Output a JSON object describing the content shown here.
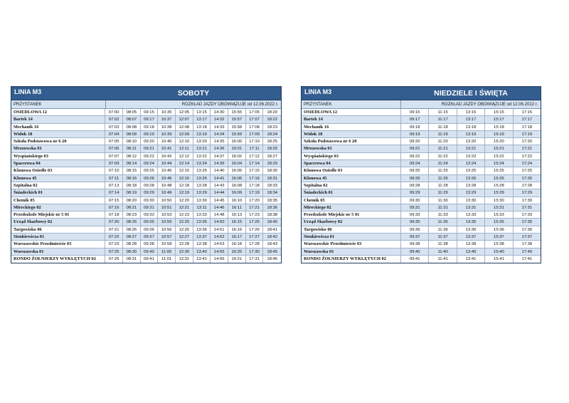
{
  "stops": [
    "OSIEDLOWA 12",
    "Bartek 14",
    "Mechanik 16",
    "Widok 18",
    "Szkoła Podstawowa nr 6 20",
    "Mrozowska 01",
    "Wyspiańskiego 03",
    "Spacerowa 04",
    "Klonowa Osiedle 03",
    "Klonowa 45",
    "Szpitalna 02",
    "Śniadeckich 01",
    "Chemik 05",
    "Mireckiego 02",
    "Przedszkole Miejskie nr 5 01",
    "Urząd Skarbowy 02",
    "Targowisko 06",
    "Sienkiewicza 01",
    "Warszawskie Przedmieście 03",
    "Warszawska 01",
    "RONDO ŻOŁNIERZY WYKLĘTYCH 02"
  ],
  "saturday": {
    "line": "LINIA  M3",
    "day": "SOBOTY",
    "stop_header": "PRZYSTANEK",
    "valid_from": "ROZKŁAD JAZDY OBOWIĄZUJE od 12.06.2022 r.",
    "times": [
      [
        "07:00",
        "08:05",
        "09:15",
        "10:35",
        "12:05",
        "13:15",
        "14:30",
        "15:55",
        "17:05",
        "18:20"
      ],
      [
        "07:02",
        "08:07",
        "09:17",
        "10:37",
        "12:07",
        "13:17",
        "14:32",
        "15:57",
        "17:07",
        "18:22"
      ],
      [
        "07:03",
        "08:08",
        "09:18",
        "10:38",
        "12:08",
        "13:18",
        "14:33",
        "15:58",
        "17:08",
        "18:23"
      ],
      [
        "07:04",
        "08:09",
        "09:19",
        "10:39",
        "12:09",
        "13:19",
        "14:34",
        "15:59",
        "17:09",
        "18:24"
      ],
      [
        "07:05",
        "08:10",
        "09:20",
        "10:40",
        "12:10",
        "13:20",
        "14:35",
        "16:00",
        "17:10",
        "18:25"
      ],
      [
        "07:06",
        "08:11",
        "09:21",
        "10:41",
        "12:11",
        "13:21",
        "14:36",
        "16:01",
        "17:11",
        "18:26"
      ],
      [
        "07:07",
        "08:12",
        "09:22",
        "10:42",
        "12:12",
        "13:22",
        "14:37",
        "16:02",
        "17:12",
        "18:27"
      ],
      [
        "07:09",
        "08:14",
        "09:24",
        "10:44",
        "12:14",
        "13:24",
        "14:39",
        "16:04",
        "17:14",
        "18:29"
      ],
      [
        "07:10",
        "08:15",
        "09:25",
        "10:45",
        "12:15",
        "13:25",
        "14:40",
        "16:05",
        "17:15",
        "18:30"
      ],
      [
        "07:11",
        "08:16",
        "09:26",
        "10:46",
        "12:16",
        "13:26",
        "14:41",
        "16:06",
        "17:16",
        "18:31"
      ],
      [
        "07:13",
        "08:18",
        "09:28",
        "10:48",
        "12:18",
        "13:28",
        "14:43",
        "16:08",
        "17:18",
        "18:33"
      ],
      [
        "07:14",
        "08:19",
        "09:29",
        "10:49",
        "12:19",
        "13:29",
        "14:44",
        "16:09",
        "17:19",
        "18:34"
      ],
      [
        "07:15",
        "08:20",
        "09:30",
        "10:50",
        "12:20",
        "13:30",
        "14:45",
        "16:10",
        "17:20",
        "18:35"
      ],
      [
        "07:16",
        "08:21",
        "09:31",
        "10:51",
        "12:21",
        "13:11",
        "14:46",
        "16:11",
        "17:21",
        "18:36"
      ],
      [
        "07:18",
        "08:23",
        "09:33",
        "10:53",
        "12:23",
        "13:33",
        "14:48",
        "16:13",
        "17:23",
        "18:38"
      ],
      [
        "07:20",
        "08:25",
        "09:35",
        "10:55",
        "12:25",
        "13:35",
        "14:50",
        "16:15",
        "17:25",
        "18:40"
      ],
      [
        "07:21",
        "08:26",
        "09:36",
        "10:56",
        "12:26",
        "13:36",
        "14:51",
        "16:16",
        "17:26",
        "18:41"
      ],
      [
        "07:22",
        "08:27",
        "09:37",
        "10:57",
        "12:27",
        "13:37",
        "14:52",
        "16:17",
        "17:27",
        "18:42"
      ],
      [
        "07:23",
        "08:28",
        "09:38",
        "10:58",
        "12:28",
        "13:38",
        "14:53",
        "16:18",
        "17:28",
        "18:43"
      ],
      [
        "07:25",
        "08:30",
        "09:40",
        "11:00",
        "12:30",
        "13:40",
        "14:55",
        "16:20",
        "17:30",
        "18:45"
      ],
      [
        "07:26",
        "08:31",
        "09:41",
        "11:01",
        "12:31",
        "13:41",
        "14:56",
        "16:21",
        "17:31",
        "18:46"
      ]
    ]
  },
  "sunday": {
    "line": "LINIA  M3",
    "day": "NIEDZIELE I ŚWIĘTA",
    "stop_header": "PRZYSTANEK",
    "valid_from": "ROZKŁAD JAZDY OBOWIĄZUJE od 12.06.2022 r.",
    "times": [
      [
        "09:15",
        "11:15",
        "13:15",
        "15:15",
        "17:15"
      ],
      [
        "09:17",
        "11:17",
        "13:17",
        "15:17",
        "17:17"
      ],
      [
        "09:18",
        "11:18",
        "13:18",
        "15:18",
        "17:18"
      ],
      [
        "09:19",
        "11:19",
        "13:19",
        "15:19",
        "17:19"
      ],
      [
        "09:20",
        "11:20",
        "13:20",
        "15:20",
        "17:20"
      ],
      [
        "09:21",
        "11:21",
        "13:21",
        "15:21",
        "17:21"
      ],
      [
        "09:22",
        "11:22",
        "13:22",
        "15:22",
        "17:22"
      ],
      [
        "09:24",
        "11:24",
        "13:24",
        "15:24",
        "17:24"
      ],
      [
        "09:25",
        "11:25",
        "13:25",
        "15:25",
        "17:25"
      ],
      [
        "09:26",
        "11:26",
        "13:26",
        "15:26",
        "17:26"
      ],
      [
        "09:28",
        "11:28",
        "13:28",
        "15:28",
        "17:28"
      ],
      [
        "09:29",
        "11:29",
        "13:29",
        "15:29",
        "17:29"
      ],
      [
        "09:30",
        "11:30",
        "13:30",
        "15:30",
        "17:30"
      ],
      [
        "09:31",
        "11:31",
        "13:31",
        "15:31",
        "17:31"
      ],
      [
        "09:33",
        "11:33",
        "13:33",
        "15:33",
        "17:33"
      ],
      [
        "09:35",
        "11:35",
        "13:35",
        "15:35",
        "17:35"
      ],
      [
        "09:36",
        "11:36",
        "13:36",
        "15:36",
        "17:36"
      ],
      [
        "09:37",
        "11:37",
        "13:37",
        "15:37",
        "17:37"
      ],
      [
        "09:38",
        "11:38",
        "13:38",
        "15:38",
        "17:38"
      ],
      [
        "09:40",
        "11:40",
        "13:40",
        "15:40",
        "17:40"
      ],
      [
        "09:41",
        "11:41",
        "13:41",
        "15:41",
        "17:41"
      ]
    ]
  },
  "colors": {
    "header": "#345d8f",
    "subheader": "#d5e2f1",
    "shaded_row": "#d7e3f1"
  }
}
